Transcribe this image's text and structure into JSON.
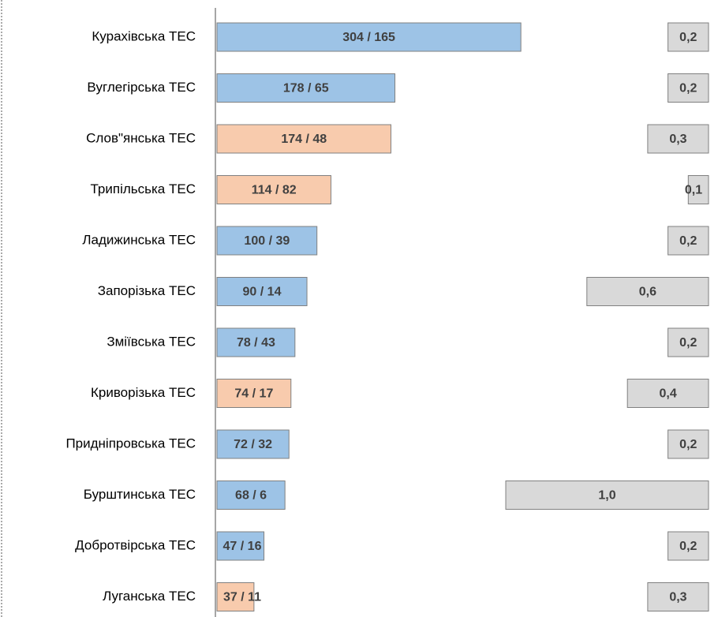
{
  "chart_data": {
    "type": "bar",
    "categories": [
      "Курахівська ТЕС",
      "Вуглегірська ТЕС",
      "Слов\"янська ТЕС",
      "Трипільська ТЕС",
      "Ладижинська ТЕС",
      "Запорізька ТЕС",
      "Зміївська ТЕС",
      "Криворізька ТЕС",
      "Придніпровська ТЕС",
      "Бурштинська ТЕС",
      "Добротвірська ТЕС",
      "Луганська ТЕС"
    ],
    "series": [
      {
        "values": [
          304,
          178,
          174,
          114,
          100,
          90,
          78,
          74,
          72,
          68,
          47,
          37
        ],
        "value_labels": [
          "304 / 165",
          "178 / 65",
          "174 / 48",
          "114 / 82",
          "100 / 39",
          "90 / 14",
          "78 / 43",
          "74 / 17",
          "72 / 32",
          "68 / 6",
          "47 / 16",
          "37 / 11"
        ],
        "colors": [
          "#9dc3e6",
          "#9dc3e6",
          "#f8cbad",
          "#f8cbad",
          "#9dc3e6",
          "#9dc3e6",
          "#9dc3e6",
          "#f8cbad",
          "#9dc3e6",
          "#9dc3e6",
          "#9dc3e6",
          "#f8cbad"
        ]
      },
      {
        "values": [
          0.2,
          0.2,
          0.3,
          0.1,
          0.2,
          0.6,
          0.2,
          0.4,
          0.2,
          1.0,
          0.2,
          0.3
        ],
        "value_labels": [
          "0,2",
          "0,2",
          "0,3",
          "0,1",
          "0,2",
          "0,6",
          "0,2",
          "0,4",
          "0,2",
          "1,0",
          "0,2",
          "0,3"
        ],
        "color": "#d9d9d9"
      }
    ]
  }
}
